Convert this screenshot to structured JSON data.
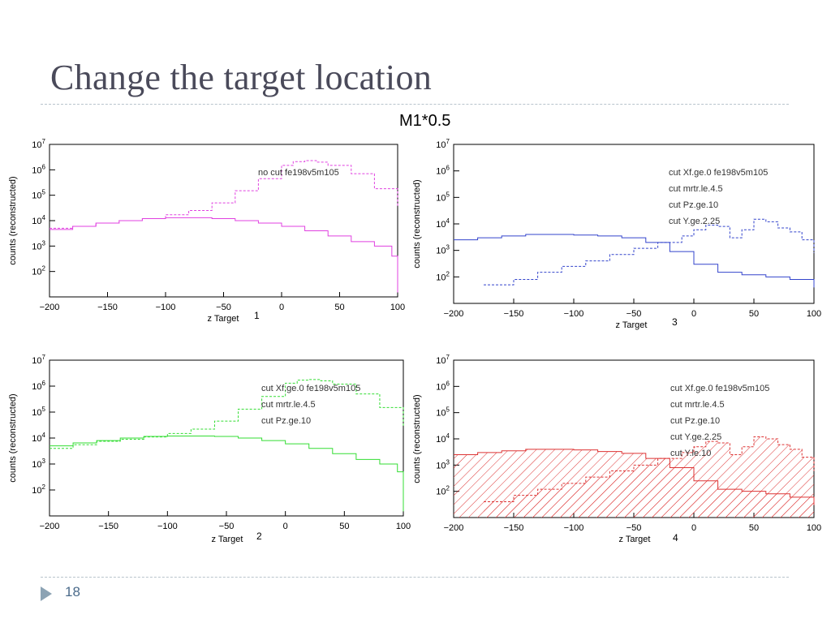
{
  "slide": {
    "title": "Change the target location",
    "subtitle": "M1*0.5",
    "page_number": "18"
  },
  "chart_data": [
    {
      "type": "line",
      "panel_number": "1",
      "xlabel": "z Target",
      "ylabel": "counts (reconstructed)",
      "xlim": [
        -200,
        100
      ],
      "ylim_log10": [
        1,
        7
      ],
      "xticks": [
        "-200",
        "-150",
        "-100",
        "-50",
        "0",
        "50",
        "100"
      ],
      "yticks": [
        [
          "10",
          "2"
        ],
        [
          "10",
          "3"
        ],
        [
          "10",
          "4"
        ],
        [
          "10",
          "5"
        ],
        [
          "10",
          "6"
        ],
        [
          "10",
          "7"
        ]
      ],
      "color": "#e040e0",
      "legend": [
        "no cut fe198v5m105"
      ],
      "series": [
        {
          "style": "dashed",
          "x": [
            -200,
            -180,
            -160,
            -140,
            -120,
            -100,
            -80,
            -60,
            -40,
            -20,
            0,
            10,
            20,
            30,
            40,
            60,
            80,
            100
          ],
          "y": [
            5000,
            6000,
            8000,
            10000,
            12000,
            17000,
            25000,
            50000,
            150000,
            450000,
            1500000,
            2100000,
            2300000,
            2000000,
            1500000,
            700000,
            180000,
            35000
          ]
        },
        {
          "style": "solid",
          "x": [
            -200,
            -180,
            -160,
            -140,
            -120,
            -100,
            -80,
            -60,
            -40,
            -20,
            0,
            20,
            40,
            60,
            80,
            95,
            100
          ],
          "y": [
            4500,
            6000,
            8000,
            10000,
            12000,
            13000,
            13000,
            12000,
            10000,
            8000,
            6000,
            4000,
            2500,
            1500,
            1000,
            400,
            15
          ]
        }
      ]
    },
    {
      "type": "line",
      "panel_number": "3",
      "xlabel": "z Target",
      "ylabel": "counts (reconstructed)",
      "xlim": [
        -200,
        100
      ],
      "ylim_log10": [
        1,
        7
      ],
      "xticks": [
        "-200",
        "-150",
        "-100",
        "-50",
        "0",
        "50",
        "100"
      ],
      "yticks": [
        [
          "10",
          "2"
        ],
        [
          "10",
          "3"
        ],
        [
          "10",
          "4"
        ],
        [
          "10",
          "5"
        ],
        [
          "10",
          "6"
        ],
        [
          "10",
          "7"
        ]
      ],
      "color": "#3344cc",
      "legend": [
        "cut Xf.ge.0 fe198v5m105",
        "cut mrtr.le.4.5",
        "cut Pz.ge.10",
        "cut Y.ge.2.25"
      ],
      "series": [
        {
          "style": "solid",
          "x": [
            -200,
            -180,
            -160,
            -140,
            -120,
            -100,
            -80,
            -60,
            -40,
            -20,
            0,
            20,
            40,
            60,
            80,
            100
          ],
          "y": [
            2500,
            3000,
            3500,
            4000,
            4000,
            3800,
            3500,
            3000,
            2000,
            900,
            300,
            150,
            120,
            100,
            80,
            40
          ]
        },
        {
          "style": "dashed",
          "x": [
            -175,
            -150,
            -130,
            -110,
            -90,
            -70,
            -50,
            -30,
            -10,
            0,
            10,
            20,
            30,
            40,
            50,
            60,
            70,
            80,
            90,
            100
          ],
          "y": [
            50,
            80,
            150,
            250,
            400,
            700,
            1200,
            2000,
            3500,
            6000,
            9000,
            8000,
            3000,
            6000,
            15000,
            12000,
            7000,
            5000,
            2500,
            800
          ]
        }
      ]
    },
    {
      "type": "line",
      "panel_number": "2",
      "xlabel": "z Target",
      "ylabel": "counts (reconstructed)",
      "xlim": [
        -200,
        100
      ],
      "ylim_log10": [
        1,
        7
      ],
      "xticks": [
        "-200",
        "-150",
        "-100",
        "-50",
        "0",
        "50",
        "100"
      ],
      "yticks": [
        [
          "10",
          "2"
        ],
        [
          "10",
          "3"
        ],
        [
          "10",
          "4"
        ],
        [
          "10",
          "5"
        ],
        [
          "10",
          "6"
        ],
        [
          "10",
          "7"
        ]
      ],
      "color": "#33dd33",
      "legend": [
        "cut Xf.ge.0 fe198v5m105",
        "cut mrtr.le.4.5",
        "cut Pz.ge.10"
      ],
      "series": [
        {
          "style": "dashed",
          "x": [
            -200,
            -180,
            -160,
            -140,
            -120,
            -100,
            -80,
            -60,
            -40,
            -20,
            0,
            10,
            20,
            30,
            40,
            60,
            80,
            100
          ],
          "y": [
            4000,
            5500,
            7500,
            9000,
            11000,
            15000,
            22000,
            45000,
            130000,
            400000,
            1300000,
            1700000,
            1800000,
            1600000,
            1200000,
            500000,
            150000,
            30000
          ]
        },
        {
          "style": "solid",
          "x": [
            -200,
            -180,
            -160,
            -140,
            -120,
            -100,
            -80,
            -60,
            -40,
            -20,
            0,
            20,
            40,
            60,
            80,
            95,
            100
          ],
          "y": [
            5000,
            6500,
            8000,
            10000,
            11500,
            12000,
            12000,
            11500,
            10000,
            8000,
            6000,
            4000,
            2500,
            1500,
            1000,
            500,
            15
          ]
        }
      ]
    },
    {
      "type": "area",
      "panel_number": "4",
      "xlabel": "z Target",
      "ylabel": "counts (reconstructed)",
      "xlim": [
        -200,
        100
      ],
      "ylim_log10": [
        1,
        7
      ],
      "xticks": [
        "-200",
        "-150",
        "-100",
        "-50",
        "0",
        "50",
        "100"
      ],
      "yticks": [
        [
          "10",
          "2"
        ],
        [
          "10",
          "3"
        ],
        [
          "10",
          "4"
        ],
        [
          "10",
          "5"
        ],
        [
          "10",
          "6"
        ],
        [
          "10",
          "7"
        ]
      ],
      "color": "#dd3333",
      "hatched": true,
      "legend": [
        "cut Xf.ge.0 fe198v5m105",
        "cut mrtr.le.4.5",
        "cut Pz.ge.10",
        "cut Y.ge.2.25",
        "cut Y.le.10"
      ],
      "series": [
        {
          "style": "solid",
          "x": [
            -200,
            -180,
            -160,
            -140,
            -120,
            -100,
            -80,
            -60,
            -40,
            -20,
            0,
            20,
            40,
            60,
            80,
            100
          ],
          "y": [
            2500,
            3000,
            3500,
            4000,
            4000,
            3800,
            3300,
            2800,
            1800,
            800,
            250,
            120,
            100,
            80,
            60,
            30
          ]
        },
        {
          "style": "dashed",
          "x": [
            -175,
            -150,
            -130,
            -110,
            -90,
            -70,
            -50,
            -30,
            -10,
            0,
            10,
            20,
            30,
            40,
            50,
            60,
            70,
            80,
            90,
            100
          ],
          "y": [
            40,
            70,
            120,
            200,
            350,
            600,
            1000,
            1800,
            3000,
            5000,
            8000,
            7000,
            2500,
            5000,
            12000,
            10000,
            6000,
            4000,
            2000,
            600
          ]
        }
      ]
    }
  ]
}
